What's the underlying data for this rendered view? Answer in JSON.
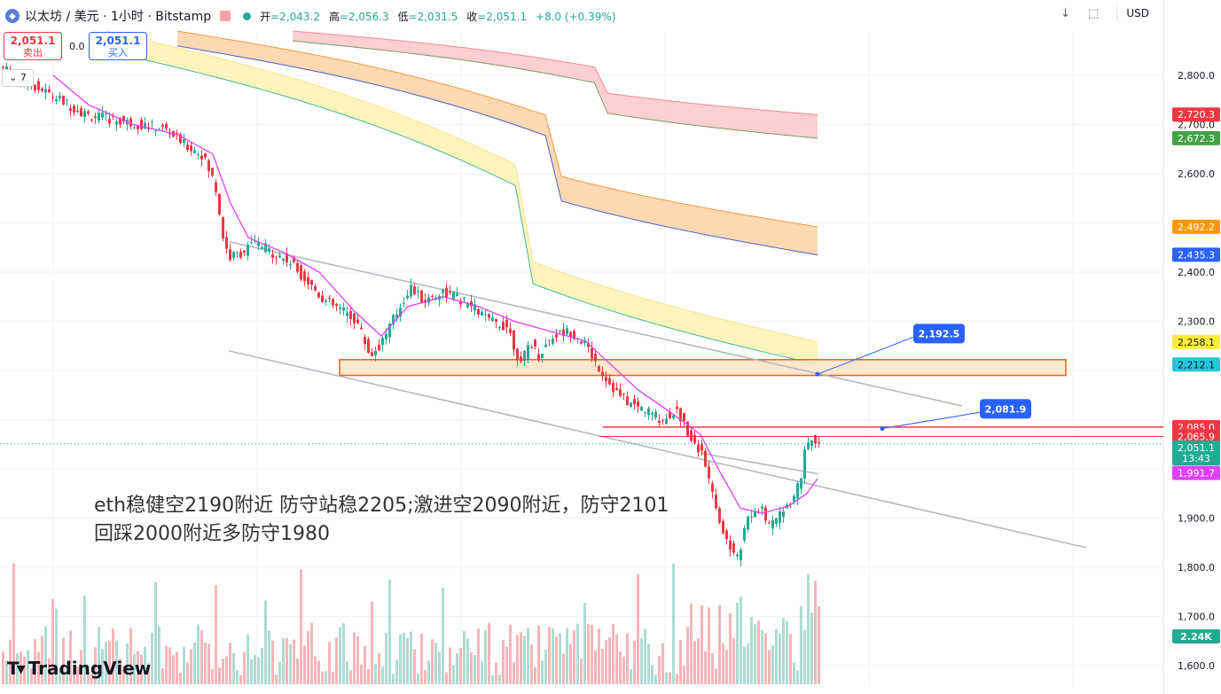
{
  "header": {
    "symbol_icon": "ethereum-icon",
    "title": "以太坊 / 美元 · 1小时 · Bitstamp",
    "ohlc": [
      {
        "k": "开",
        "v": "=2,043.2"
      },
      {
        "k": "高",
        "v": "=2,056.3"
      },
      {
        "k": "低",
        "v": "=2,031.5"
      },
      {
        "k": "收",
        "v": "=2,051.1"
      }
    ],
    "change": "+8.0 (+0.39%)",
    "download_icon": "↓",
    "fullscreen_icon": "⬚",
    "currency": "USD"
  },
  "trade": {
    "sell_price": "2,051.1",
    "sell_label": "卖出",
    "spread": "0.0",
    "buy_price": "2,051.1",
    "buy_label": "买入"
  },
  "collapse_label": "⌄ 7",
  "annotation": {
    "line1": "eth稳健空2190附近 防守站稳2205;激进空2090附近，防守2101",
    "line2": "回踩2000附近多防守1980"
  },
  "logo_text": "TradingView",
  "colors": {
    "up": "#22ab94",
    "down": "#f23645",
    "ma": "#e040fb",
    "zone_fill": "#fde5c8",
    "zone_border": "#e65100"
  },
  "chart_data": {
    "type": "candlestick",
    "symbol": "以太坊 / 美元",
    "interval": "1小时",
    "exchange": "Bitstamp",
    "ylim": [
      1580,
      2880
    ],
    "y_ticks": [
      1600,
      1700,
      1800,
      1900,
      2000,
      2100,
      2200,
      2300,
      2400,
      2500,
      2600,
      2700,
      2800
    ],
    "y_tick_labels": [
      "1,600.0",
      "1,700.0",
      "1,800.0",
      "1,900.0",
      "",
      "",
      "",
      "2,300.0",
      "2,400.0",
      "",
      "2,600.0",
      "2,700.0",
      "2,800.0"
    ],
    "price_path": [
      [
        0,
        2820
      ],
      [
        40,
        2780
      ],
      [
        70,
        2750
      ],
      [
        100,
        2720
      ],
      [
        130,
        2710
      ],
      [
        160,
        2700
      ],
      [
        190,
        2690
      ],
      [
        210,
        2660
      ],
      [
        230,
        2640
      ],
      [
        245,
        2580
      ],
      [
        255,
        2460
      ],
      [
        262,
        2430
      ],
      [
        275,
        2440
      ],
      [
        290,
        2460
      ],
      [
        310,
        2440
      ],
      [
        330,
        2420
      ],
      [
        350,
        2380
      ],
      [
        370,
        2340
      ],
      [
        390,
        2320
      ],
      [
        405,
        2300
      ],
      [
        420,
        2230
      ],
      [
        430,
        2250
      ],
      [
        445,
        2300
      ],
      [
        465,
        2370
      ],
      [
        480,
        2340
      ],
      [
        500,
        2360
      ],
      [
        515,
        2350
      ],
      [
        535,
        2330
      ],
      [
        555,
        2300
      ],
      [
        575,
        2290
      ],
      [
        590,
        2210
      ],
      [
        600,
        2260
      ],
      [
        610,
        2230
      ],
      [
        625,
        2270
      ],
      [
        645,
        2280
      ],
      [
        660,
        2260
      ],
      [
        680,
        2200
      ],
      [
        700,
        2150
      ],
      [
        715,
        2130
      ],
      [
        730,
        2120
      ],
      [
        750,
        2100
      ],
      [
        765,
        2120
      ],
      [
        780,
        2070
      ],
      [
        795,
        2030
      ],
      [
        805,
        1950
      ],
      [
        815,
        1890
      ],
      [
        825,
        1840
      ],
      [
        835,
        1820
      ],
      [
        845,
        1900
      ],
      [
        860,
        1920
      ],
      [
        872,
        1880
      ],
      [
        885,
        1920
      ],
      [
        897,
        1940
      ],
      [
        905,
        1980
      ],
      [
        912,
        2050
      ],
      [
        918,
        2060
      ],
      [
        924,
        2051
      ]
    ],
    "ma_path": [
      [
        60,
        2800
      ],
      [
        100,
        2740
      ],
      [
        150,
        2700
      ],
      [
        200,
        2680
      ],
      [
        240,
        2640
      ],
      [
        260,
        2540
      ],
      [
        280,
        2470
      ],
      [
        320,
        2440
      ],
      [
        360,
        2400
      ],
      [
        400,
        2320
      ],
      [
        430,
        2270
      ],
      [
        460,
        2330
      ],
      [
        500,
        2350
      ],
      [
        540,
        2330
      ],
      [
        580,
        2300
      ],
      [
        620,
        2280
      ],
      [
        660,
        2260
      ],
      [
        690,
        2210
      ],
      [
        720,
        2160
      ],
      [
        760,
        2110
      ],
      [
        790,
        2070
      ],
      [
        810,
        2000
      ],
      [
        835,
        1920
      ],
      [
        860,
        1910
      ],
      [
        890,
        1925
      ],
      [
        910,
        1950
      ],
      [
        922,
        1980
      ]
    ],
    "ribbons": [
      {
        "name": "red",
        "x": [
          330,
          922
        ],
        "upper": [
          2890,
          2720
        ],
        "lower": [
          2870,
          2672
        ],
        "fill": "#fcc7c9",
        "upper_color": "#f38b8f",
        "lower_color": "#7a9a66"
      },
      {
        "name": "orange",
        "x": [
          200,
          922
        ],
        "upper": [
          2890,
          2492
        ],
        "lower": [
          2860,
          2435
        ],
        "fill": "#fdd2a6",
        "upper_color": "#f19a3e",
        "lower_color": "#4a5ec8"
      },
      {
        "name": "yellow",
        "x": [
          120,
          922
        ],
        "upper": [
          2890,
          2258
        ],
        "lower": [
          2850,
          2212
        ],
        "fill": "#fff3b0",
        "upper_color": "#f5e48a",
        "lower_color": "#3fb89c"
      }
    ],
    "channel": {
      "upper": [
        [
          258,
          2462
        ],
        [
          1085,
          2128
        ]
      ],
      "lower": [
        [
          258,
          2240
        ],
        [
          1225,
          1840
        ]
      ],
      "inner": [
        [
          790,
          2032
        ],
        [
          922,
          1990
        ]
      ]
    },
    "levels": {
      "resistance_zone": [
        2190,
        2222
      ],
      "line_a": 2085.0,
      "line_b": 2065.9,
      "last_price": 2051.1
    },
    "callouts": [
      {
        "label": "2,192.5",
        "from_x": 922,
        "from_y": 2192.5,
        "box_y": 2275
      },
      {
        "label": "2,081.9",
        "from_x": 995,
        "from_y": 2081.9,
        "box_y": 2122
      }
    ],
    "price_tags": [
      {
        "value": "2,720.3",
        "y": 2720.3,
        "bg": "#f23645"
      },
      {
        "value": "2,672.3",
        "y": 2672.3,
        "bg": "#43a047"
      },
      {
        "value": "2,492.2",
        "y": 2492.2,
        "bg": "#ff9800"
      },
      {
        "value": "2,435.3",
        "y": 2435.3,
        "bg": "#2962ff"
      },
      {
        "value": "2,258.1",
        "y": 2258.1,
        "bg": "#ffeb3b",
        "fg": "#131722"
      },
      {
        "value": "2,212.1",
        "y": 2212.1,
        "bg": "#26c6da",
        "fg": "#131722"
      },
      {
        "value": "2,085.0",
        "y": 2085.0,
        "bg": "#f23645"
      },
      {
        "value": "2,065.9",
        "y": 2065.9,
        "bg": "#f23645"
      },
      {
        "value": "2,051.1",
        "y": 2043,
        "bg": "#22ab94",
        "sub": "13:43"
      },
      {
        "value": "1,991.7",
        "y": 1991.7,
        "bg": "#e040fb"
      }
    ],
    "volume_tag": "2.24K"
  }
}
